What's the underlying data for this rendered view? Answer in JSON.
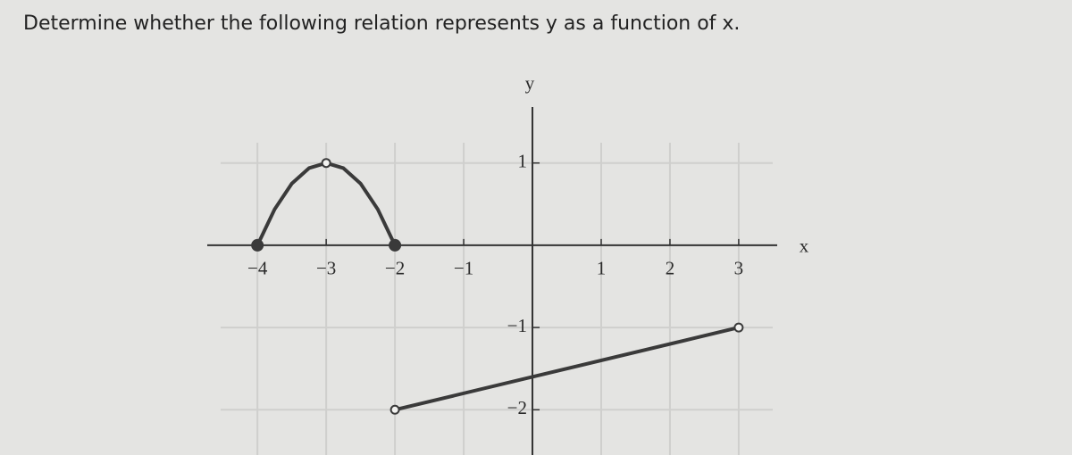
{
  "chart_data": {
    "type": "line",
    "title": "Determine whether the following relation represents y as a function of x.",
    "x_label": "x",
    "y_label": "y",
    "xlim": [
      -4.73,
      3.56
    ],
    "ylim": [
      -2.55,
      1.68
    ],
    "xticks": [
      {
        "value": -4,
        "label": "−4"
      },
      {
        "value": -3,
        "label": "−3"
      },
      {
        "value": -2,
        "label": "−2"
      },
      {
        "value": -1,
        "label": "−1"
      },
      1,
      2,
      3
    ],
    "yticks": [
      1,
      {
        "value": -1,
        "label": "−1"
      },
      {
        "value": -2,
        "label": "−2"
      }
    ],
    "grid": true,
    "series": [
      {
        "color": "#3a3a3a",
        "x": [
          -4,
          -3.75,
          -3.5,
          -3.25,
          -3,
          -2.75,
          -2.5,
          -2.25,
          -2
        ],
        "values": [
          0,
          0.4375,
          0.75,
          0.9375,
          1,
          0.9375,
          0.75,
          0.4375,
          0
        ]
      },
      {
        "color": "#3a3a3a",
        "x": [
          -2,
          3
        ],
        "values": [
          -2,
          -1
        ]
      }
    ],
    "points": [
      {
        "x": -4,
        "y": 0,
        "open": false
      },
      {
        "x": -3,
        "y": 1,
        "open": true
      },
      {
        "x": -2,
        "y": 0,
        "open": false
      },
      {
        "x": -2,
        "y": -2,
        "open": true
      },
      {
        "x": 3,
        "y": -1,
        "open": true
      }
    ]
  }
}
